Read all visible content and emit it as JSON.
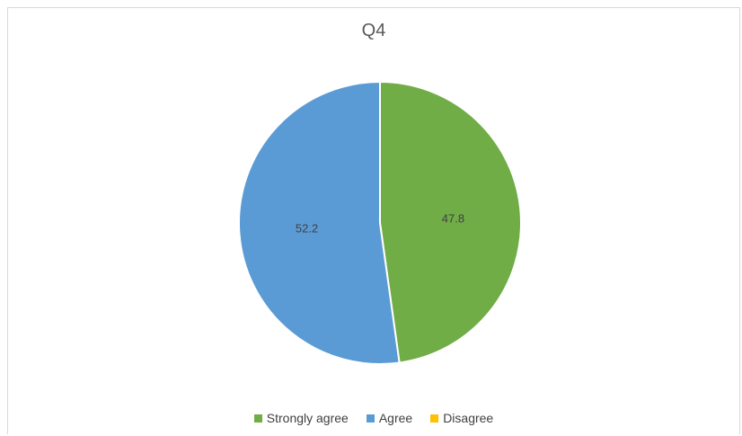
{
  "chart_data": {
    "type": "pie",
    "title": "Q4",
    "categories": [
      "Strongly agree",
      "Agree",
      "Disagree"
    ],
    "values": [
      47.8,
      52.2,
      0
    ],
    "colors": [
      "#70AD47",
      "#5B9BD5",
      "#FFC000"
    ],
    "data_labels": [
      "47.8",
      "52.2",
      ""
    ],
    "legend_position": "bottom"
  }
}
